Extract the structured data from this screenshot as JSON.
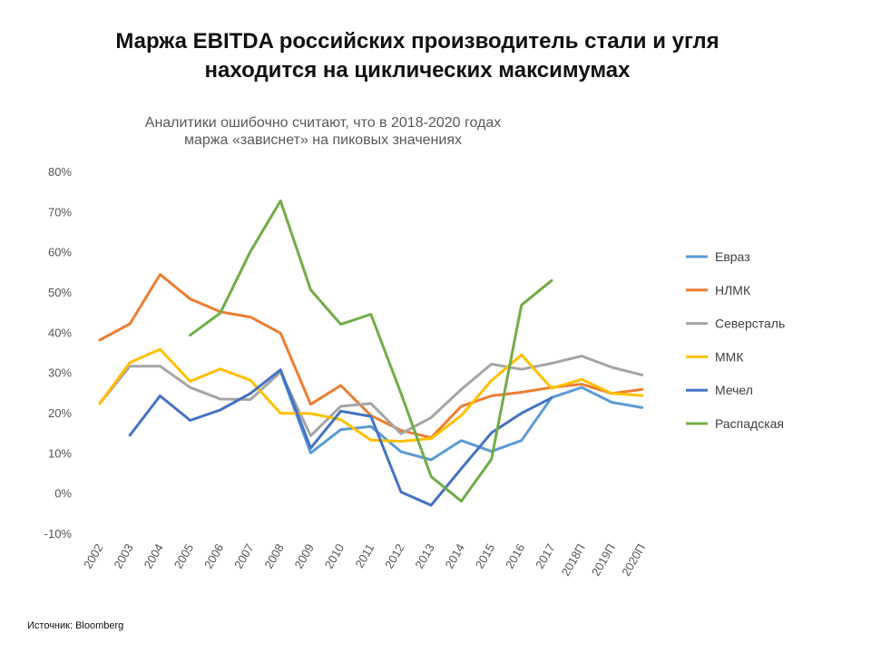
{
  "headline": {
    "line1": "Маржа EBITDA российских производитель стали и угля",
    "line2": "находится на циклических максимумах"
  },
  "source": "Источник: Bloomberg",
  "chart_data": {
    "type": "line",
    "title": "Аналитики ошибочно считают, что в 2018-2020 годах маржа «зависнет» на пиковых значениях",
    "title_lines": [
      "Аналитики ошибочно считают, что в 2018-2020 годах",
      "маржа «зависнет» на пиковых значениях"
    ],
    "xlabel": "",
    "ylabel": "",
    "ylim": [
      -10,
      80
    ],
    "yticks": [
      -10,
      0,
      10,
      20,
      30,
      40,
      50,
      60,
      70,
      80
    ],
    "ytick_labels": [
      "-10%",
      "0%",
      "10%",
      "20%",
      "30%",
      "40%",
      "50%",
      "60%",
      "70%",
      "80%"
    ],
    "grid": false,
    "legend_position": "right",
    "categories": [
      "2002",
      "2003",
      "2004",
      "2005",
      "2006",
      "2007",
      "2008",
      "2009",
      "2010",
      "2011",
      "2012",
      "2013",
      "2014",
      "2015",
      "2016",
      "2017",
      "2018П",
      "2019П",
      "2020П"
    ],
    "series": [
      {
        "name": "Евраз",
        "color": "#5b9bd5",
        "values": [
          null,
          null,
          null,
          null,
          null,
          null,
          30.5,
          10.2,
          16.0,
          16.8,
          10.5,
          8.5,
          13.3,
          10.6,
          13.3,
          24.0,
          26.5,
          22.8,
          21.5
        ]
      },
      {
        "name": "НЛМК",
        "color": "#ed7d31",
        "values": [
          38.3,
          42.3,
          54.6,
          48.5,
          45.3,
          44.0,
          40.0,
          22.3,
          27.0,
          19.5,
          15.8,
          14.0,
          21.8,
          24.4,
          25.3,
          26.5,
          27.3,
          25.0,
          26.0
        ]
      },
      {
        "name": "Северсталь",
        "color": "#a5a5a5",
        "values": [
          22.5,
          31.8,
          31.8,
          26.5,
          23.6,
          23.5,
          30.3,
          14.5,
          21.8,
          22.5,
          15.0,
          19.0,
          26.0,
          32.3,
          31.0,
          32.5,
          34.3,
          31.5,
          29.6
        ]
      },
      {
        "name": "ММК",
        "color": "#ffc000",
        "values": [
          22.5,
          32.7,
          36.0,
          28.0,
          31.1,
          28.3,
          20.1,
          20.0,
          18.5,
          13.4,
          13.1,
          13.8,
          19.5,
          28.2,
          34.6,
          26.3,
          28.5,
          25.0,
          24.5
        ]
      },
      {
        "name": "Мечел",
        "color": "#4472c4",
        "values": [
          null,
          14.6,
          24.4,
          18.3,
          20.9,
          25.0,
          30.9,
          11.4,
          20.6,
          19.3,
          0.5,
          -2.8,
          6.3,
          15.2,
          20.1,
          23.9,
          null,
          null,
          null
        ]
      },
      {
        "name": "Распадская",
        "color": "#70ad47",
        "values": [
          null,
          null,
          null,
          39.5,
          45.0,
          60.3,
          72.9,
          50.8,
          42.2,
          44.7,
          25.0,
          4.3,
          -1.8,
          8.6,
          47.0,
          53.1,
          null,
          null,
          null
        ]
      }
    ]
  }
}
